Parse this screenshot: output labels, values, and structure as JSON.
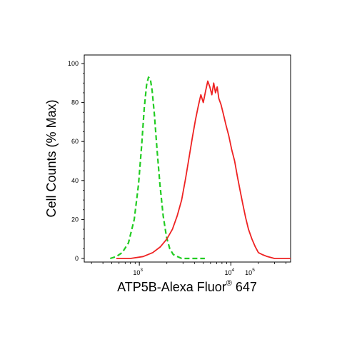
{
  "chart_data": {
    "type": "line",
    "title": "",
    "xlabel": "ATP5B-Alexa Fluor",
    "xlabel_superscript": "®",
    "xlabel_suffix": " 647",
    "ylabel": "Cell Counts (% Max)",
    "x_scale": "log",
    "xlim": [
      250,
      45000
    ],
    "ylim": [
      0,
      100
    ],
    "x_tick_labels": [
      {
        "value": 1000,
        "base": "10",
        "exp": "3"
      },
      {
        "value": 10000,
        "base": "10",
        "exp": "4"
      },
      {
        "value": 100000,
        "base": "10",
        "exp": "5"
      }
    ],
    "y_ticks": [
      0,
      20,
      40,
      60,
      80,
      100
    ],
    "grid": false,
    "legend": "none",
    "series": [
      {
        "color": "#22cc22",
        "style": "dashed",
        "points": [
          [
            480,
            0
          ],
          [
            560,
            1
          ],
          [
            650,
            3
          ],
          [
            760,
            8
          ],
          [
            880,
            20
          ],
          [
            980,
            38
          ],
          [
            1060,
            58
          ],
          [
            1130,
            77
          ],
          [
            1200,
            89
          ],
          [
            1260,
            93
          ],
          [
            1320,
            92
          ],
          [
            1380,
            86
          ],
          [
            1460,
            74
          ],
          [
            1560,
            56
          ],
          [
            1680,
            38
          ],
          [
            1820,
            22
          ],
          [
            1980,
            11
          ],
          [
            2150,
            5
          ],
          [
            2350,
            2
          ],
          [
            2600,
            1
          ],
          [
            2900,
            0
          ],
          [
            3500,
            0
          ],
          [
            5200,
            0
          ]
        ]
      },
      {
        "color": "#ee2222",
        "style": "solid",
        "points": [
          [
            560,
            0
          ],
          [
            800,
            0
          ],
          [
            1100,
            1
          ],
          [
            1400,
            3
          ],
          [
            1700,
            6
          ],
          [
            2000,
            10
          ],
          [
            2300,
            15
          ],
          [
            2600,
            22
          ],
          [
            2900,
            30
          ],
          [
            3200,
            41
          ],
          [
            3500,
            52
          ],
          [
            3800,
            62
          ],
          [
            4100,
            71
          ],
          [
            4400,
            78
          ],
          [
            4700,
            84
          ],
          [
            5000,
            80
          ],
          [
            5300,
            86
          ],
          [
            5600,
            91
          ],
          [
            5900,
            88
          ],
          [
            6200,
            84
          ],
          [
            6500,
            90
          ],
          [
            6800,
            85
          ],
          [
            7100,
            88
          ],
          [
            7400,
            82
          ],
          [
            7800,
            79
          ],
          [
            8300,
            74
          ],
          [
            8900,
            68
          ],
          [
            9500,
            63
          ],
          [
            10200,
            56
          ],
          [
            11000,
            50
          ],
          [
            11800,
            42
          ],
          [
            12600,
            35
          ],
          [
            13500,
            28
          ],
          [
            14500,
            21
          ],
          [
            15600,
            15
          ],
          [
            17000,
            10
          ],
          [
            18500,
            6
          ],
          [
            20000,
            3
          ],
          [
            22000,
            2
          ],
          [
            25000,
            1
          ],
          [
            30000,
            0
          ],
          [
            40000,
            0
          ],
          [
            45000,
            0
          ]
        ]
      }
    ]
  }
}
